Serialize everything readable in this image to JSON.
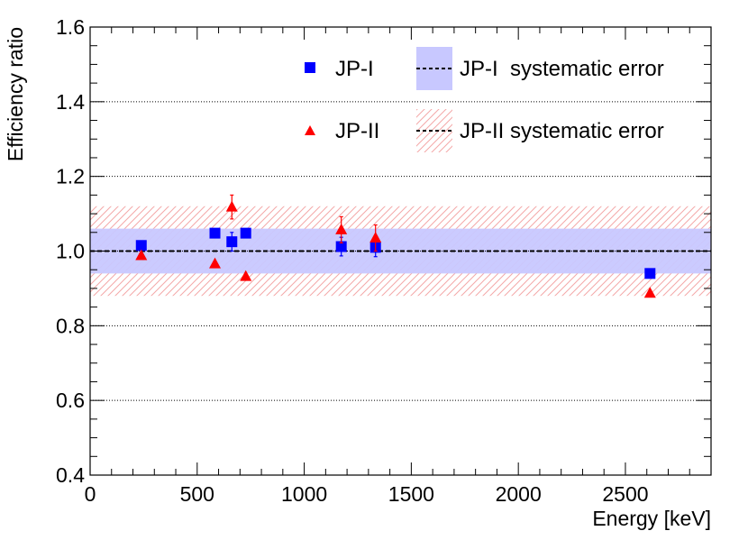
{
  "chart_data": {
    "type": "scatter",
    "title": "",
    "xlabel": "Energy [keV]",
    "ylabel": "Efficiency ratio",
    "xlim": [
      0,
      2900
    ],
    "ylim": [
      0.4,
      1.6
    ],
    "x_ticks": [
      0,
      500,
      1000,
      1500,
      2000,
      2500
    ],
    "y_ticks": [
      0.4,
      0.6,
      0.8,
      1.0,
      1.2,
      1.4,
      1.6
    ],
    "x_tick_labels": [
      "0",
      "500",
      "1000",
      "1500",
      "2000",
      "2500"
    ],
    "y_tick_labels": [
      "0.4",
      "0.6",
      "0.8",
      "1.0",
      "1.2",
      "1.4",
      "1.6"
    ],
    "grid": "horizontal dotted",
    "reference_line": 1.0,
    "series": [
      {
        "name": "JP-I",
        "marker": "square",
        "color": "#0000ff",
        "points": [
          {
            "x": 239,
            "y": 1.015,
            "err": 0.0
          },
          {
            "x": 583,
            "y": 1.048,
            "err": 0.0
          },
          {
            "x": 662,
            "y": 1.025,
            "err": 0.025
          },
          {
            "x": 727,
            "y": 1.048,
            "err": 0.0
          },
          {
            "x": 1173,
            "y": 1.012,
            "err": 0.025
          },
          {
            "x": 1333,
            "y": 1.01,
            "err": 0.025
          },
          {
            "x": 2615,
            "y": 0.94,
            "err": 0.0
          }
        ]
      },
      {
        "name": "JP-II",
        "marker": "triangle",
        "color": "#ff0000",
        "points": [
          {
            "x": 239,
            "y": 0.988,
            "err": 0.0
          },
          {
            "x": 583,
            "y": 0.966,
            "err": 0.0
          },
          {
            "x": 662,
            "y": 1.118,
            "err": 0.032
          },
          {
            "x": 727,
            "y": 0.932,
            "err": 0.0
          },
          {
            "x": 1173,
            "y": 1.057,
            "err": 0.035
          },
          {
            "x": 1333,
            "y": 1.035,
            "err": 0.035
          },
          {
            "x": 2615,
            "y": 0.887,
            "err": 0.0
          }
        ]
      }
    ],
    "bands": [
      {
        "name": "JP-I  systematic error",
        "lower": 0.94,
        "upper": 1.06,
        "color": "#c8c8ff",
        "style": "solid"
      },
      {
        "name": "JP-II systematic error",
        "lower": 0.88,
        "upper": 1.12,
        "color": "#ffb4b4",
        "style": "hatched"
      }
    ],
    "legend": {
      "placement": "top-right",
      "entries": [
        {
          "label": "JP-I",
          "kind": "marker-square",
          "color": "#0000ff"
        },
        {
          "label": "JP-II",
          "kind": "marker-triangle",
          "color": "#ff0000"
        },
        {
          "label": "JP-I  systematic error",
          "kind": "band-solid",
          "color": "#c8c8ff"
        },
        {
          "label": "JP-II systematic error",
          "kind": "band-hatched",
          "color": "#ffb4b4"
        }
      ]
    }
  }
}
